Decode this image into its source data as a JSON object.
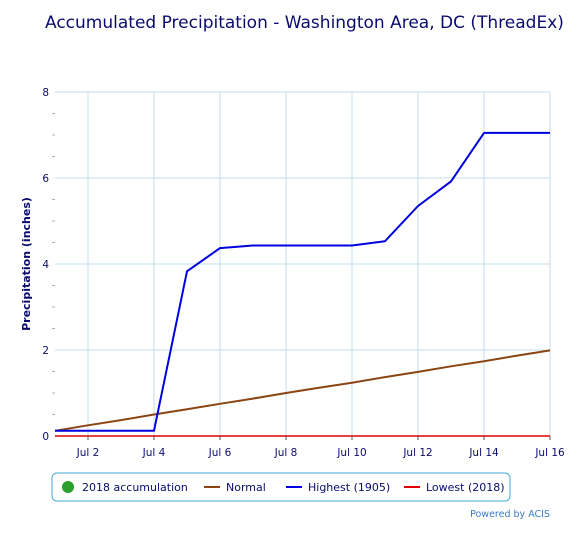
{
  "chart_data": {
    "type": "line",
    "title": "Accumulated Precipitation - Washington Area, DC (ThreadEx)",
    "ylabel": "Precipitation (inches)",
    "xlabel": "",
    "ylim": [
      0,
      8
    ],
    "yticks": [
      "0",
      "2",
      "4",
      "6",
      "8"
    ],
    "x_start_day": 1,
    "x_end_day": 16,
    "xlim_days": [
      1,
      16
    ],
    "xticks": [
      {
        "day": 2,
        "label": "Jul 2"
      },
      {
        "day": 4,
        "label": "Jul 4"
      },
      {
        "day": 6,
        "label": "Jul 6"
      },
      {
        "day": 8,
        "label": "Jul 8"
      },
      {
        "day": 10,
        "label": "Jul 10"
      },
      {
        "day": 12,
        "label": "Jul 12"
      },
      {
        "day": 14,
        "label": "Jul 14"
      },
      {
        "day": 16,
        "label": "Jul 16"
      }
    ],
    "grid": true,
    "legend_position": "bottom",
    "series": [
      {
        "name": "2018 accumulation",
        "color": "#2ca02c",
        "marker": "circle",
        "x": [],
        "y": []
      },
      {
        "name": "Normal",
        "color": "#8b4513",
        "x": [
          1,
          2,
          3,
          4,
          5,
          6,
          7,
          8,
          9,
          10,
          11,
          12,
          13,
          14,
          15,
          16
        ],
        "y": [
          0.12,
          0.25,
          0.37,
          0.5,
          0.62,
          0.75,
          0.87,
          1.0,
          1.12,
          1.24,
          1.37,
          1.49,
          1.62,
          1.74,
          1.87,
          1.99
        ]
      },
      {
        "name": "Highest (1905)",
        "color": "#0000e0",
        "x": [
          1,
          2,
          3,
          4,
          5,
          6,
          7,
          8,
          9,
          10,
          11,
          12,
          13,
          14,
          15,
          16
        ],
        "y": [
          0.12,
          0.12,
          0.12,
          0.12,
          3.83,
          4.37,
          4.43,
          4.43,
          4.43,
          4.43,
          4.53,
          5.35,
          5.92,
          7.05,
          7.05,
          7.05
        ]
      },
      {
        "name": "Lowest (2018)",
        "color": "#e00000",
        "x": [
          1,
          2,
          3,
          4,
          5,
          6,
          7,
          8,
          9,
          10,
          11,
          12,
          13,
          14,
          15,
          16
        ],
        "y": [
          0,
          0,
          0,
          0,
          0,
          0,
          0,
          0,
          0,
          0,
          0,
          0,
          0,
          0,
          0,
          0
        ]
      }
    ]
  },
  "credit": "Powered by ACIS",
  "colors": {
    "grid": "#c6dceb",
    "axis": "#0b0b6e",
    "zero_line": "#555555",
    "legend_border": "#48a8d8"
  }
}
